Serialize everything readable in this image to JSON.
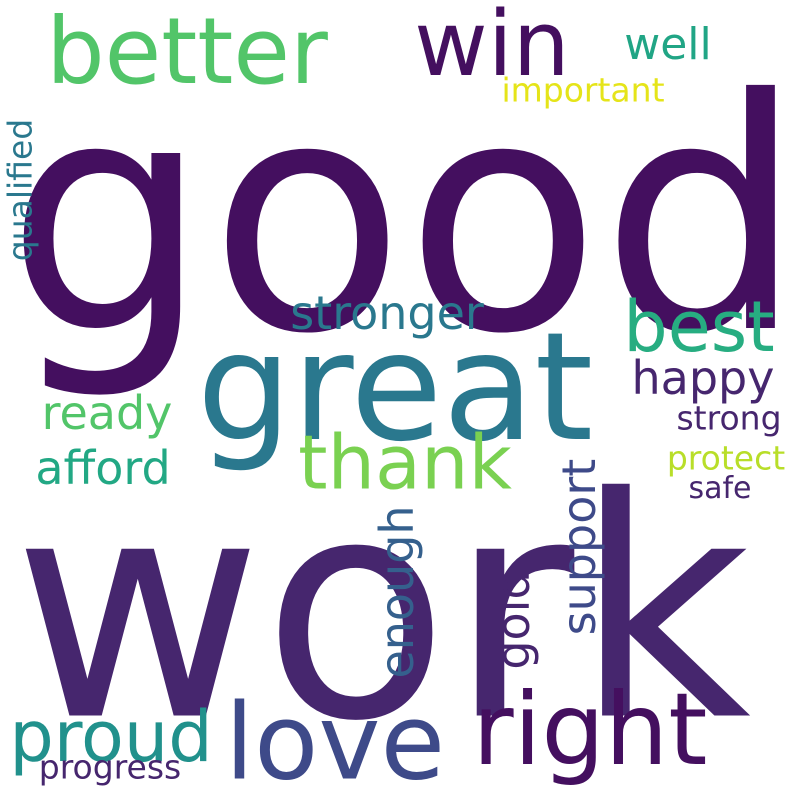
{
  "colors": {
    "background": "#ffffff",
    "deep_purple": "#440f5f",
    "purple": "#46266e",
    "indigo": "#3e4a89",
    "slate_blue": "#35608d",
    "teal_blue": "#2a788e",
    "teal": "#21918c",
    "sea_green": "#22a884",
    "green": "#52c569",
    "light_green": "#7ad151",
    "yellow": "#e5e419"
  },
  "words": [
    {
      "text": "good",
      "color": "#440f5f"
    },
    {
      "text": "work",
      "color": "#46266e"
    },
    {
      "text": "great",
      "color": "#2a788e"
    },
    {
      "text": "better",
      "color": "#52c569"
    },
    {
      "text": "win",
      "color": "#440f5f"
    },
    {
      "text": "well",
      "color": "#21a585"
    },
    {
      "text": "important",
      "color": "#e5e419"
    },
    {
      "text": "qualified",
      "color": "#2a788e"
    },
    {
      "text": "stronger",
      "color": "#2a788e"
    },
    {
      "text": "best",
      "color": "#27ad81"
    },
    {
      "text": "happy",
      "color": "#46266e"
    },
    {
      "text": "ready",
      "color": "#52c569"
    },
    {
      "text": "thank",
      "color": "#7ad151"
    },
    {
      "text": "strong",
      "color": "#46266e"
    },
    {
      "text": "afford",
      "color": "#22a884"
    },
    {
      "text": "protect",
      "color": "#b8de29"
    },
    {
      "text": "safe",
      "color": "#46266e"
    },
    {
      "text": "support",
      "color": "#3e4a89"
    },
    {
      "text": "enough",
      "color": "#35608d"
    },
    {
      "text": "gold",
      "color": "#46266e"
    },
    {
      "text": "proud",
      "color": "#21918c"
    },
    {
      "text": "love",
      "color": "#3e4a89"
    },
    {
      "text": "right",
      "color": "#440f5f"
    },
    {
      "text": "progress",
      "color": "#46266e"
    }
  ]
}
